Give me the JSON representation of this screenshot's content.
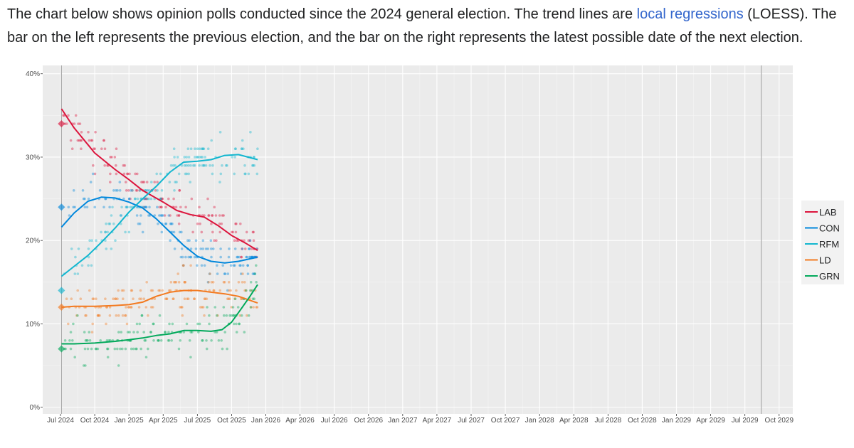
{
  "intro": {
    "text_before": "The chart below shows opinion polls conducted since the 2024 general election. The trend lines are ",
    "link_text": "local regressions",
    "text_after": " (LOESS). The bar on the left represents the previous election, and the bar on the right represents the latest possible date of the next election."
  },
  "chart_data": {
    "type": "scatter",
    "title": "",
    "xlabel": "",
    "ylabel": "",
    "x_range": [
      2024.37,
      2029.85
    ],
    "ylim": [
      -0.8,
      41
    ],
    "grid": true,
    "legend_position": "right",
    "x_ticks": [
      {
        "label": "Jul 2024",
        "value": 2024.5
      },
      {
        "label": "Oct 2024",
        "value": 2024.75
      },
      {
        "label": "Jan 2025",
        "value": 2025.0
      },
      {
        "label": "Apr 2025",
        "value": 2025.25
      },
      {
        "label": "Jul 2025",
        "value": 2025.5
      },
      {
        "label": "Oct 2025",
        "value": 2025.75
      },
      {
        "label": "Jan 2026",
        "value": 2026.0
      },
      {
        "label": "Apr 2026",
        "value": 2026.25
      },
      {
        "label": "Jul 2026",
        "value": 2026.5
      },
      {
        "label": "Oct 2026",
        "value": 2026.75
      },
      {
        "label": "Jan 2027",
        "value": 2027.0
      },
      {
        "label": "Apr 2027",
        "value": 2027.25
      },
      {
        "label": "Jul 2027",
        "value": 2027.5
      },
      {
        "label": "Oct 2027",
        "value": 2027.75
      },
      {
        "label": "Jan 2028",
        "value": 2028.0
      },
      {
        "label": "Apr 2028",
        "value": 2028.25
      },
      {
        "label": "Jul 2028",
        "value": 2028.5
      },
      {
        "label": "Oct 2028",
        "value": 2028.75
      },
      {
        "label": "Jan 2029",
        "value": 2029.0
      },
      {
        "label": "Apr 2029",
        "value": 2029.25
      },
      {
        "label": "Jul 2029",
        "value": 2029.5
      },
      {
        "label": "Oct 2029",
        "value": 2029.75
      }
    ],
    "y_ticks": [
      {
        "label": "0%",
        "value": 0
      },
      {
        "label": "10%",
        "value": 10
      },
      {
        "label": "20%",
        "value": 20
      },
      {
        "label": "30%",
        "value": 30
      },
      {
        "label": "40%",
        "value": 40
      }
    ],
    "previous_election": 2024.507,
    "next_election_deadline": 2029.62,
    "poll_range": [
      2024.52,
      2025.94
    ],
    "series": [
      {
        "name": "LAB",
        "color": "#dc143c",
        "election_result": 34,
        "trend": [
          [
            2024.507,
            35.8
          ],
          [
            2024.6,
            33.5
          ],
          [
            2024.75,
            30.5
          ],
          [
            2024.9,
            28.5
          ],
          [
            2025.0,
            27.3
          ],
          [
            2025.1,
            26.0
          ],
          [
            2025.25,
            24.6
          ],
          [
            2025.35,
            23.6
          ],
          [
            2025.45,
            23.1
          ],
          [
            2025.55,
            22.8
          ],
          [
            2025.65,
            21.8
          ],
          [
            2025.75,
            20.6
          ],
          [
            2025.85,
            19.7
          ],
          [
            2025.94,
            18.8
          ]
        ]
      },
      {
        "name": "CON",
        "color": "#0087dc",
        "election_result": 24,
        "trend": [
          [
            2024.507,
            21.6
          ],
          [
            2024.6,
            23.3
          ],
          [
            2024.7,
            24.7
          ],
          [
            2024.8,
            25.2
          ],
          [
            2024.9,
            25.1
          ],
          [
            2025.0,
            24.6
          ],
          [
            2025.1,
            23.9
          ],
          [
            2025.2,
            22.6
          ],
          [
            2025.3,
            21.0
          ],
          [
            2025.4,
            19.4
          ],
          [
            2025.5,
            18.1
          ],
          [
            2025.6,
            17.5
          ],
          [
            2025.7,
            17.3
          ],
          [
            2025.8,
            17.5
          ],
          [
            2025.94,
            18.0
          ]
        ]
      },
      {
        "name": "RFM",
        "color": "#12b6cf",
        "election_result": 14,
        "trend": [
          [
            2024.507,
            15.7
          ],
          [
            2024.6,
            16.9
          ],
          [
            2024.7,
            18.2
          ],
          [
            2024.8,
            19.8
          ],
          [
            2024.9,
            21.5
          ],
          [
            2025.0,
            23.4
          ],
          [
            2025.1,
            25.0
          ],
          [
            2025.2,
            26.5
          ],
          [
            2025.3,
            28.2
          ],
          [
            2025.4,
            29.4
          ],
          [
            2025.5,
            29.5
          ],
          [
            2025.6,
            29.7
          ],
          [
            2025.7,
            30.2
          ],
          [
            2025.8,
            30.3
          ],
          [
            2025.94,
            29.7
          ]
        ]
      },
      {
        "name": "LD",
        "color": "#f37a20",
        "election_result": 12,
        "trend": [
          [
            2024.507,
            12.0
          ],
          [
            2024.6,
            12.1
          ],
          [
            2024.75,
            12.1
          ],
          [
            2024.9,
            12.2
          ],
          [
            2025.0,
            12.3
          ],
          [
            2025.1,
            12.6
          ],
          [
            2025.2,
            13.3
          ],
          [
            2025.3,
            13.8
          ],
          [
            2025.4,
            14.0
          ],
          [
            2025.5,
            14.0
          ],
          [
            2025.6,
            13.8
          ],
          [
            2025.7,
            13.6
          ],
          [
            2025.8,
            13.3
          ],
          [
            2025.94,
            12.5
          ]
        ]
      },
      {
        "name": "GRN",
        "color": "#02a95b",
        "election_result": 7,
        "trend": [
          [
            2024.507,
            7.6
          ],
          [
            2024.6,
            7.6
          ],
          [
            2024.75,
            7.7
          ],
          [
            2024.9,
            7.9
          ],
          [
            2025.0,
            8.1
          ],
          [
            2025.1,
            8.3
          ],
          [
            2025.2,
            8.6
          ],
          [
            2025.3,
            8.8
          ],
          [
            2025.4,
            9.2
          ],
          [
            2025.5,
            9.2
          ],
          [
            2025.6,
            9.1
          ],
          [
            2025.68,
            9.3
          ],
          [
            2025.75,
            10.2
          ],
          [
            2025.82,
            11.8
          ],
          [
            2025.88,
            13.2
          ],
          [
            2025.94,
            14.7
          ]
        ]
      }
    ]
  }
}
